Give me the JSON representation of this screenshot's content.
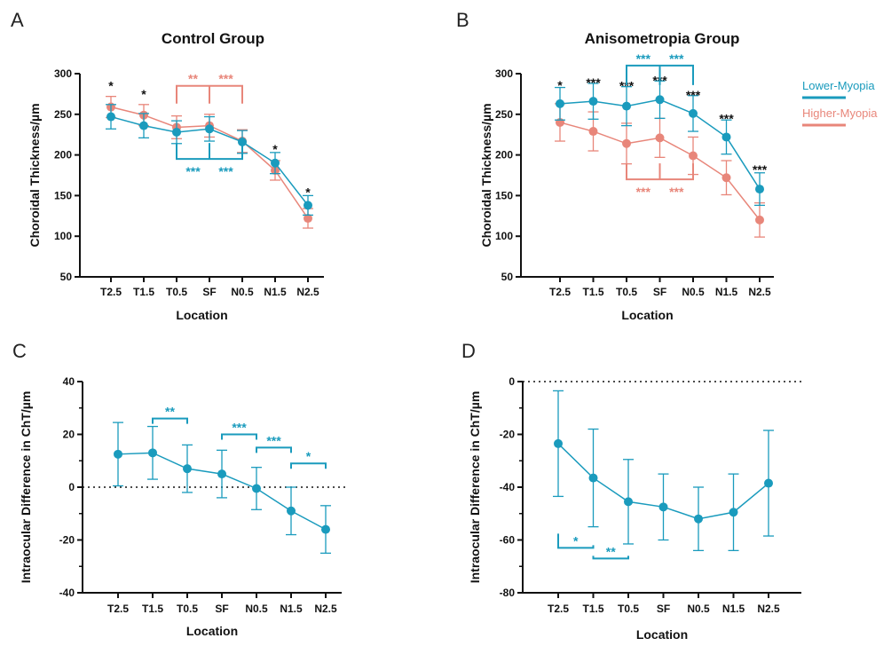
{
  "colors": {
    "lower": "#1a9bbd",
    "higher": "#e8867a",
    "axis": "#111111"
  },
  "chart_data": [
    {
      "panel": "A",
      "type": "line",
      "title": "Control Group",
      "xlabel": "Location",
      "ylabel": "Choroidal Thickness/µm",
      "categories": [
        "T2.5",
        "T1.5",
        "T0.5",
        "SF",
        "N0.5",
        "N1.5",
        "N2.5"
      ],
      "ylim": [
        50,
        300
      ],
      "yticks": [
        50,
        100,
        150,
        200,
        250,
        300
      ],
      "series": [
        {
          "name": "Higher-Myopia",
          "color": "higher",
          "values": [
            259,
            249,
            234,
            236,
            217,
            181,
            122
          ],
          "err": [
            13,
            13,
            14,
            14,
            14,
            12,
            12
          ]
        },
        {
          "name": "Lower-Myopia",
          "color": "lower",
          "values": [
            247,
            236,
            228,
            232,
            216,
            190,
            138
          ],
          "err": [
            15,
            15,
            14,
            15,
            14,
            13,
            12
          ]
        }
      ],
      "stars": [
        {
          "i": 0,
          "text": "*",
          "y": 285
        },
        {
          "i": 1,
          "text": "*",
          "y": 275
        },
        {
          "i": 5,
          "text": "*",
          "y": 207
        },
        {
          "i": 6,
          "text": "*",
          "y": 154
        }
      ],
      "brackets": [
        {
          "from": 2,
          "to": 4,
          "mid": 3,
          "y": 285,
          "dir": "down",
          "drop": 20,
          "color": "higher",
          "labels": [
            "**",
            "***"
          ],
          "labelPos": "above"
        },
        {
          "from": 2,
          "to": 4,
          "mid": 3,
          "y": 195,
          "dir": "up",
          "drop": 18,
          "color": "lower",
          "labels": [
            "***",
            "***"
          ],
          "labelPos": "below"
        }
      ],
      "zero_line": false
    },
    {
      "panel": "B",
      "type": "line",
      "title": "Anisometropia Group",
      "xlabel": "Location",
      "ylabel": "Choroidal Thickness/µm",
      "categories": [
        "T2.5",
        "T1.5",
        "T0.5",
        "SF",
        "N0.5",
        "N1.5",
        "N2.5"
      ],
      "ylim": [
        50,
        300
      ],
      "yticks": [
        50,
        100,
        150,
        200,
        250,
        300
      ],
      "series": [
        {
          "name": "Higher-Myopia",
          "color": "higher",
          "values": [
            240,
            229,
            214,
            221,
            199,
            172,
            120
          ],
          "err": [
            23,
            24,
            25,
            24,
            23,
            21,
            21
          ]
        },
        {
          "name": "Lower-Myopia",
          "color": "lower",
          "values": [
            263,
            266,
            260,
            268,
            251,
            222,
            158
          ],
          "err": [
            20,
            22,
            24,
            23,
            22,
            21,
            20
          ]
        }
      ],
      "stars": [
        {
          "i": 0,
          "text": "*",
          "y": 286
        },
        {
          "i": 1,
          "text": "***",
          "y": 289
        },
        {
          "i": 2,
          "text": "***",
          "y": 285
        },
        {
          "i": 3,
          "text": "***",
          "y": 292
        },
        {
          "i": 4,
          "text": "***",
          "y": 274
        },
        {
          "i": 5,
          "text": "***",
          "y": 245
        },
        {
          "i": 6,
          "text": "***",
          "y": 182
        }
      ],
      "brackets": [
        {
          "from": 2,
          "to": 4,
          "mid": 3,
          "y": 310,
          "dir": "down",
          "drop": 22,
          "color": "lower",
          "labels": [
            "***",
            "***"
          ],
          "labelPos": "above"
        },
        {
          "from": 2,
          "to": 4,
          "mid": 3,
          "y": 170,
          "dir": "up",
          "drop": 18,
          "color": "higher",
          "labels": [
            "***",
            "***"
          ],
          "labelPos": "below"
        }
      ],
      "legend": [
        {
          "label": "Lower-Myopia",
          "color": "lower"
        },
        {
          "label": "Higher-Myopia",
          "color": "higher"
        }
      ],
      "zero_line": false
    },
    {
      "panel": "C",
      "type": "line",
      "title": "",
      "xlabel": "Location",
      "ylabel": "Intraocular Difference in ChT/µm",
      "categories": [
        "T2.5",
        "T1.5",
        "T0.5",
        "SF",
        "N0.5",
        "N1.5",
        "N2.5"
      ],
      "ylim": [
        -40,
        40
      ],
      "yticks": [
        -40,
        -20,
        0,
        20,
        40
      ],
      "series": [
        {
          "name": "Difference",
          "color": "lower",
          "values": [
            12.5,
            13,
            7,
            5,
            -0.5,
            -9,
            -16
          ],
          "err": [
            12,
            10,
            9,
            9,
            8,
            9,
            9
          ]
        }
      ],
      "stars": [],
      "brackets": [
        {
          "from": 1,
          "to": 2,
          "y": 26,
          "dir": "down",
          "drop": 6,
          "color": "lower",
          "labels": [
            "**"
          ],
          "labelPos": "above"
        },
        {
          "from": 3,
          "to": 4,
          "y": 20,
          "dir": "down",
          "drop": 6,
          "color": "lower",
          "labels": [
            "***"
          ],
          "labelPos": "above"
        },
        {
          "from": 4,
          "to": 5,
          "y": 15,
          "dir": "down",
          "drop": 6,
          "color": "lower",
          "labels": [
            "***"
          ],
          "labelPos": "above"
        },
        {
          "from": 5,
          "to": 6,
          "y": 9,
          "dir": "down",
          "drop": 6,
          "color": "lower",
          "labels": [
            "*"
          ],
          "labelPos": "above"
        }
      ],
      "zero_line": true
    },
    {
      "panel": "D",
      "type": "line",
      "title": "",
      "xlabel": "Location",
      "ylabel": "Intraocular Difference in ChT/µm",
      "categories": [
        "T2.5",
        "T1.5",
        "T0.5",
        "SF",
        "N0.5",
        "N1.5",
        "N2.5"
      ],
      "ylim": [
        -80,
        0
      ],
      "yticks": [
        -80,
        -60,
        -40,
        -20,
        0
      ],
      "series": [
        {
          "name": "Difference",
          "color": "lower",
          "values": [
            -23.5,
            -36.5,
            -45.5,
            -47.5,
            -52,
            -49.5,
            -38.5
          ],
          "err": [
            20,
            18.5,
            16,
            12.5,
            12,
            14.5,
            20
          ]
        }
      ],
      "stars": [],
      "brackets": [
        {
          "from": 0,
          "to": 1,
          "y": -63,
          "dir": "up",
          "drop": 16,
          "dropTo": 3,
          "color": "lower",
          "labels": [
            "*"
          ],
          "labelPos": "above"
        },
        {
          "from": 1,
          "to": 2,
          "y": -67,
          "dir": "up",
          "drop": 3,
          "color": "lower",
          "labels": [
            "**"
          ],
          "labelPos": "above"
        }
      ],
      "zero_line": true
    }
  ]
}
